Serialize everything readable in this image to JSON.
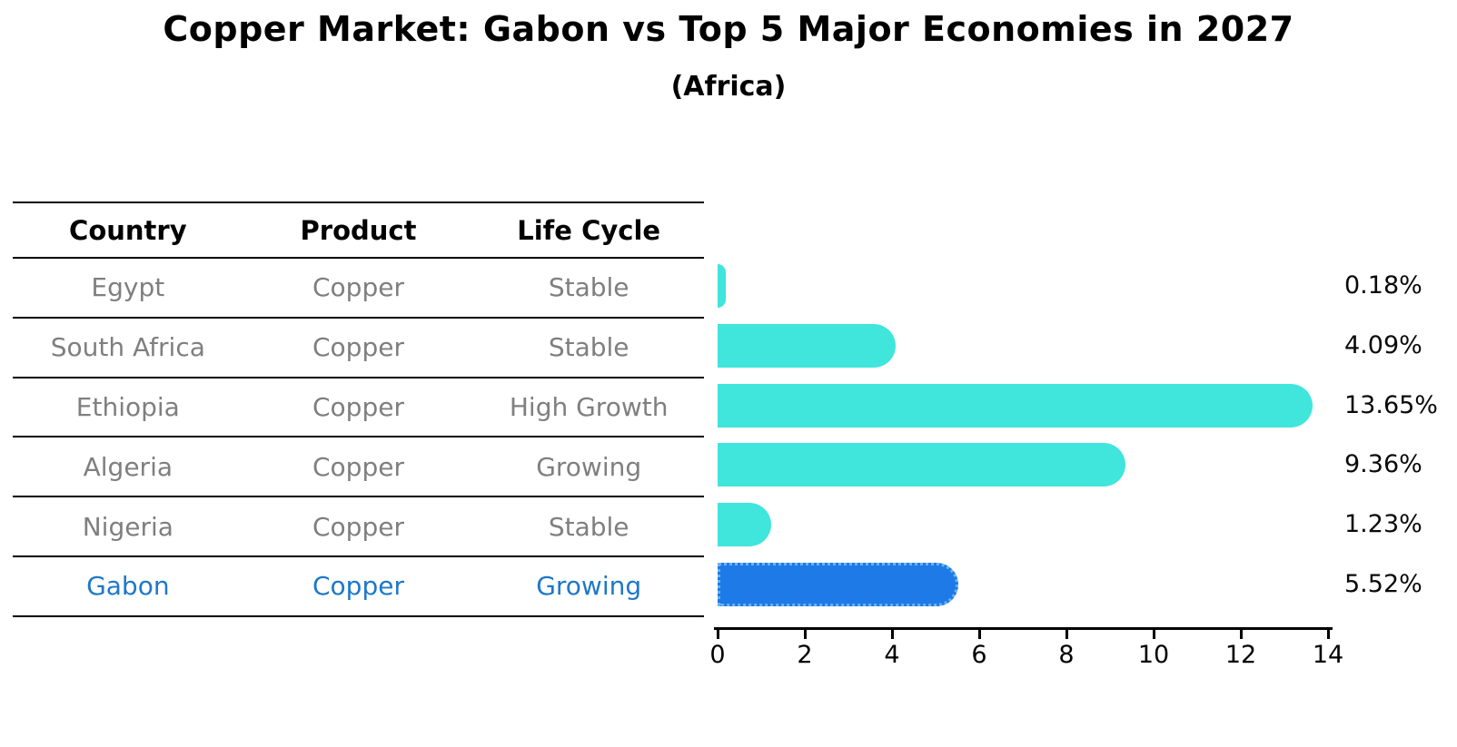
{
  "header": {
    "title": "Copper Market: Gabon vs Top 5 Major Economies in 2027",
    "subtitle": "(Africa)"
  },
  "table": {
    "columns": [
      "Country",
      "Product",
      "Life Cycle"
    ]
  },
  "rows": [
    {
      "country": "Egypt",
      "product": "Copper",
      "life_cycle": "Stable",
      "value": 0.18,
      "value_label": "0.18%",
      "highlight": false
    },
    {
      "country": "South Africa",
      "product": "Copper",
      "life_cycle": "Stable",
      "value": 4.09,
      "value_label": "4.09%",
      "highlight": false
    },
    {
      "country": "Ethiopia",
      "product": "Copper",
      "life_cycle": "High Growth",
      "value": 13.65,
      "value_label": "13.65%",
      "highlight": false
    },
    {
      "country": "Algeria",
      "product": "Copper",
      "life_cycle": "Growing",
      "value": 9.36,
      "value_label": "9.36%",
      "highlight": false
    },
    {
      "country": "Nigeria",
      "product": "Copper",
      "life_cycle": "Stable",
      "value": 1.23,
      "value_label": "1.23%",
      "highlight": false
    },
    {
      "country": "Gabon",
      "product": "Copper",
      "life_cycle": "Growing",
      "value": 5.52,
      "value_label": "5.52%",
      "highlight": true
    }
  ],
  "chart_data": {
    "type": "bar",
    "orientation": "horizontal",
    "title": "Copper Market: Gabon vs Top 5 Major Economies in 2027",
    "subtitle": "(Africa)",
    "categories": [
      "Egypt",
      "South Africa",
      "Ethiopia",
      "Algeria",
      "Nigeria",
      "Gabon"
    ],
    "values": [
      0.18,
      4.09,
      13.65,
      9.36,
      1.23,
      5.52
    ],
    "value_labels": [
      "0.18%",
      "4.09%",
      "13.65%",
      "9.36%",
      "1.23%",
      "5.52%"
    ],
    "xlabel": "",
    "ylabel": "",
    "xlim": [
      0,
      14
    ],
    "x_ticks": [
      0,
      2,
      4,
      6,
      8,
      10,
      12,
      14
    ],
    "grid": false,
    "legend": false,
    "bar_color": "#40e5dc",
    "highlight_bar_color": "#1e7ae6",
    "highlight_border_color": "#69b3f7",
    "highlight_text_color": "#1e78c8",
    "highlight_index": 5
  }
}
